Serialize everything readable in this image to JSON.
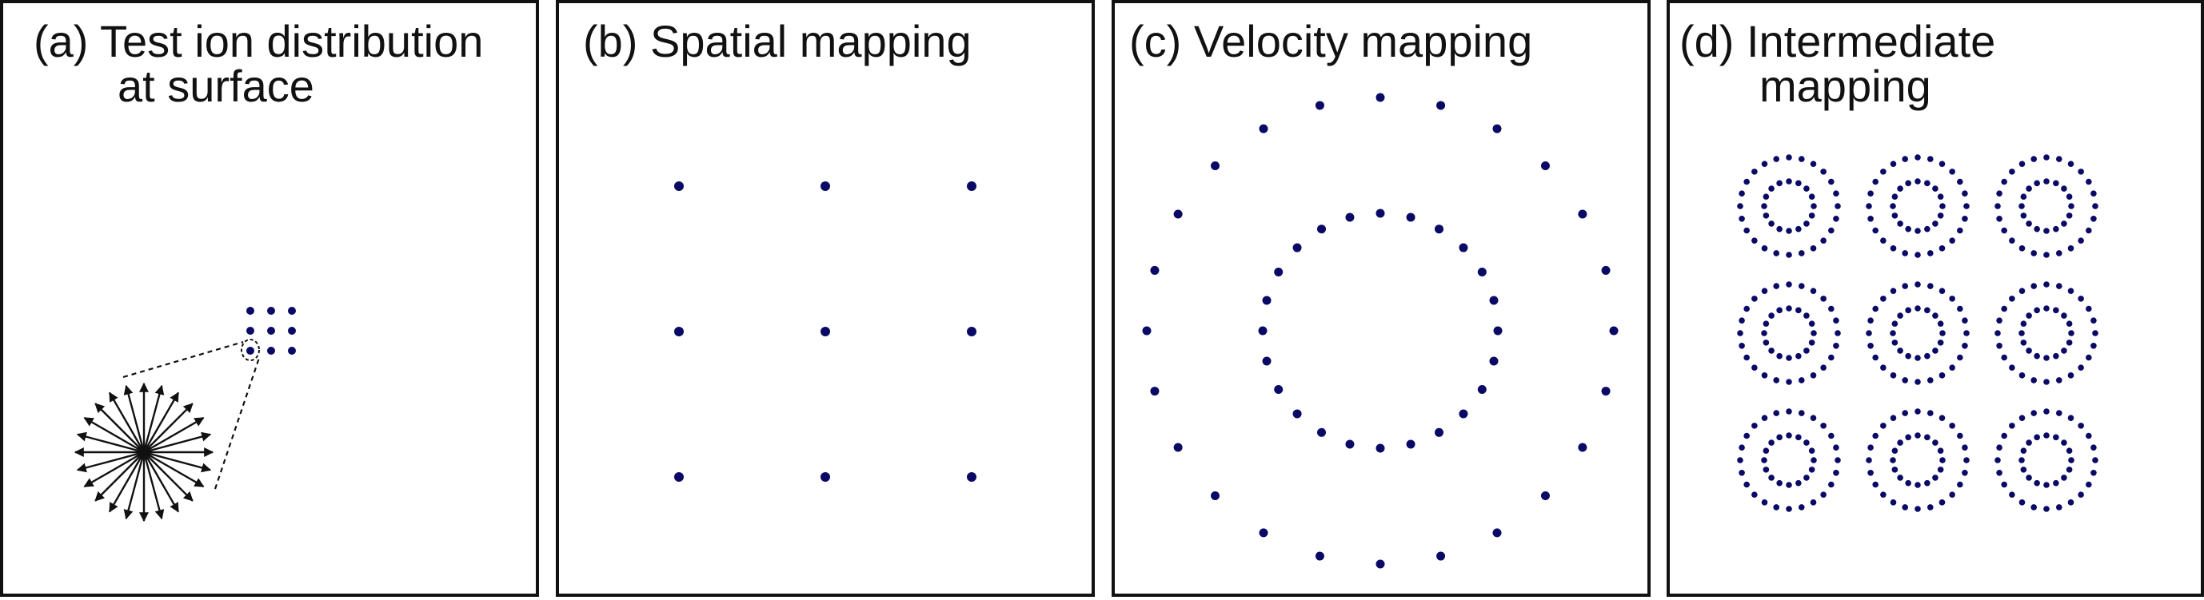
{
  "panels": [
    {
      "id": "a",
      "title_line1": "(a) Test ion distribution",
      "title_line2": "at surface"
    },
    {
      "id": "b",
      "title_line1": "(b) Spatial mapping",
      "title_line2": ""
    },
    {
      "id": "c",
      "title_line1": "(c) Velocity mapping",
      "title_line2": ""
    },
    {
      "id": "d",
      "title_line1": "(d) Intermediate",
      "title_line2": "mapping"
    }
  ],
  "colors": {
    "dot": "#0a0a66",
    "frame": "#111111",
    "arrow": "#111111"
  },
  "content": {
    "test_grid": {
      "rows": 3,
      "cols": 3
    },
    "burst_arrow_count": 24,
    "spatial_grid": {
      "rows": 3,
      "cols": 3
    },
    "velocity_rings": [
      {
        "points": 24
      },
      {
        "points": 24
      }
    ],
    "intermediate_grid": {
      "rows": 3,
      "cols": 3,
      "inner_points": 16,
      "outer_points": 24
    }
  }
}
